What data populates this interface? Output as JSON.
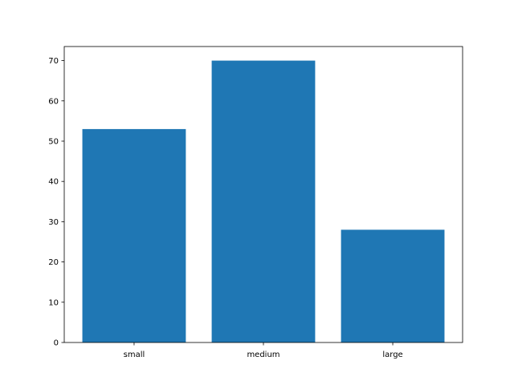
{
  "chart_data": {
    "type": "bar",
    "categories": [
      "small",
      "medium",
      "large"
    ],
    "values": [
      53,
      70,
      28
    ],
    "title": "",
    "xlabel": "",
    "ylabel": "",
    "xlim": [
      -0.54,
      2.54
    ],
    "ylim": [
      0,
      73.5
    ],
    "yticks": [
      0,
      10,
      20,
      30,
      40,
      50,
      60,
      70
    ],
    "grid": false,
    "bar_color": "#1f77b4"
  }
}
